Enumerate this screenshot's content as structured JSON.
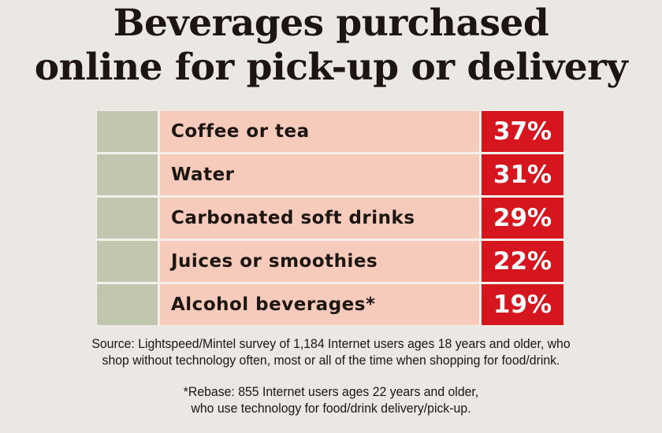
{
  "title_lines": [
    "Beverages purchased",
    "online for pick-up or delivery"
  ],
  "chart_data": {
    "type": "table",
    "title": "Beverages purchased online for pick-up or delivery",
    "categories": [
      "Coffee or tea",
      "Water",
      "Carbonated soft drinks",
      "Juices or smoothies",
      "Alcohol beverages*"
    ],
    "values": [
      37,
      31,
      29,
      22,
      19
    ],
    "value_labels": [
      "37%",
      "31%",
      "29%",
      "22%",
      "19%"
    ],
    "unit": "%"
  },
  "colors": {
    "background": "#ebe7e2",
    "swatch": "#c2c6af",
    "label_bg": "#f6cbbb",
    "value_bg": "#d5161f"
  },
  "source_lines": [
    "Source: Lightspeed/Mintel survey of 1,184 Internet users ages 18 years and older, who",
    "shop without technology often, most or all of the time when shopping for food/drink."
  ],
  "footnote_lines": [
    "*Rebase: 855 Internet users ages 22 years and older,",
    "who use technology for food/drink delivery/pick-up."
  ]
}
